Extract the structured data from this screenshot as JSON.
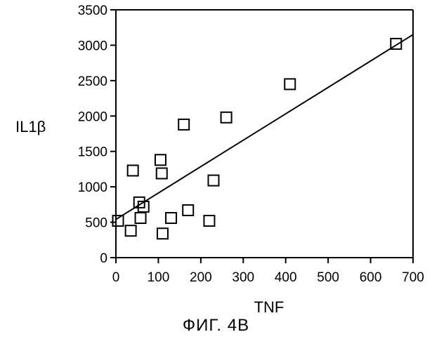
{
  "figure": {
    "caption": "ФИГ. 4B"
  },
  "chart_data": {
    "type": "scatter",
    "title": "",
    "xlabel": "TNF",
    "ylabel": "IL1β",
    "xlim": [
      0,
      700
    ],
    "ylim": [
      0,
      3500
    ],
    "x_ticks": [
      0,
      100,
      200,
      300,
      400,
      500,
      600,
      700
    ],
    "y_ticks": [
      0,
      500,
      1000,
      1500,
      2000,
      2500,
      3000,
      3500
    ],
    "grid": false,
    "legend": "none",
    "marker": "open-square",
    "points": [
      {
        "x": 5,
        "y": 520
      },
      {
        "x": 35,
        "y": 380
      },
      {
        "x": 40,
        "y": 1230
      },
      {
        "x": 55,
        "y": 780
      },
      {
        "x": 58,
        "y": 560
      },
      {
        "x": 65,
        "y": 720
      },
      {
        "x": 105,
        "y": 1380
      },
      {
        "x": 108,
        "y": 1190
      },
      {
        "x": 110,
        "y": 340
      },
      {
        "x": 130,
        "y": 560
      },
      {
        "x": 160,
        "y": 1880
      },
      {
        "x": 170,
        "y": 670
      },
      {
        "x": 220,
        "y": 520
      },
      {
        "x": 230,
        "y": 1090
      },
      {
        "x": 260,
        "y": 1980
      },
      {
        "x": 410,
        "y": 2450
      },
      {
        "x": 660,
        "y": 3020
      }
    ],
    "trendline": {
      "x": [
        0,
        700
      ],
      "y": [
        540,
        3150
      ]
    }
  }
}
